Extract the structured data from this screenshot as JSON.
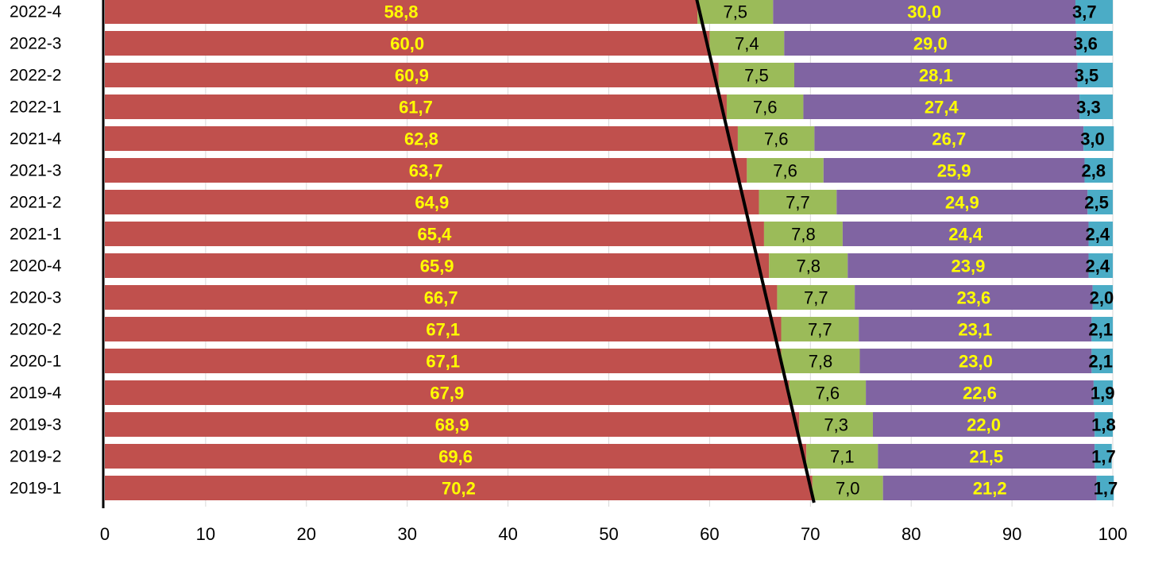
{
  "chart_data": {
    "type": "bar",
    "orientation": "horizontal",
    "stacked": true,
    "categories": [
      "2022-4",
      "2022-3",
      "2022-2",
      "2022-1",
      "2021-4",
      "2021-3",
      "2021-2",
      "2021-1",
      "2020-4",
      "2020-3",
      "2020-2",
      "2020-1",
      "2019-4",
      "2019-3",
      "2019-2",
      "2019-1"
    ],
    "series": [
      {
        "color": "#c0504d",
        "label_color": "#ffff00",
        "values": [
          58.8,
          60.0,
          60.9,
          61.7,
          62.8,
          63.7,
          64.9,
          65.4,
          65.9,
          66.7,
          67.1,
          67.1,
          67.9,
          68.9,
          69.6,
          70.2
        ],
        "labels": [
          "58,8",
          "60,0",
          "60,9",
          "61,7",
          "62,8",
          "63,7",
          "64,9",
          "65,4",
          "65,9",
          "66,7",
          "67,1",
          "67,1",
          "67,9",
          "68,9",
          "69,6",
          "70,2"
        ]
      },
      {
        "color": "#9bbb59",
        "label_color": "#000000",
        "values": [
          7.5,
          7.4,
          7.5,
          7.6,
          7.6,
          7.6,
          7.7,
          7.8,
          7.8,
          7.7,
          7.7,
          7.8,
          7.6,
          7.3,
          7.1,
          7.0
        ],
        "labels": [
          "7,5",
          "7,4",
          "7,5",
          "7,6",
          "7,6",
          "7,6",
          "7,7",
          "7,8",
          "7,8",
          "7,7",
          "7,7",
          "7,8",
          "7,6",
          "7,3",
          "7,1",
          "7,0"
        ]
      },
      {
        "color": "#8064a2",
        "label_color": "#ffff00",
        "values": [
          30.0,
          29.0,
          28.1,
          27.4,
          26.7,
          25.9,
          24.9,
          24.4,
          23.9,
          23.6,
          23.1,
          23.0,
          22.6,
          22.0,
          21.5,
          21.2
        ],
        "labels": [
          "30,0",
          "29,0",
          "28,1",
          "27,4",
          "26,7",
          "25,9",
          "24,9",
          "24,4",
          "23,9",
          "23,6",
          "23,1",
          "23,0",
          "22,6",
          "22,0",
          "21,5",
          "21,2"
        ]
      },
      {
        "color": "#4bacc6",
        "label_color": "#000000",
        "values": [
          3.7,
          3.6,
          3.5,
          3.3,
          3.0,
          2.8,
          2.5,
          2.4,
          2.4,
          2.0,
          2.1,
          2.1,
          1.9,
          1.8,
          1.7,
          1.7
        ],
        "labels": [
          "3,7",
          "3,6",
          "3,5",
          "3,3",
          "3,0",
          "2,8",
          "2,5",
          "2,4",
          "2,4",
          "2,0",
          "2,1",
          "2,1",
          "1,9",
          "1,8",
          "1,7",
          "1,7"
        ]
      }
    ],
    "xlim": [
      0,
      100
    ],
    "xticks": [
      "0",
      "10",
      "20",
      "30",
      "40",
      "50",
      "60",
      "70",
      "80",
      "90",
      "100"
    ],
    "grid": true,
    "annotations": [
      {
        "type": "trend-line",
        "from": {
          "category": "2022-4",
          "x": 59.0
        },
        "to": {
          "category": "2019-1",
          "x": 70.2
        }
      }
    ],
    "title": "",
    "xlabel": "",
    "ylabel": ""
  }
}
